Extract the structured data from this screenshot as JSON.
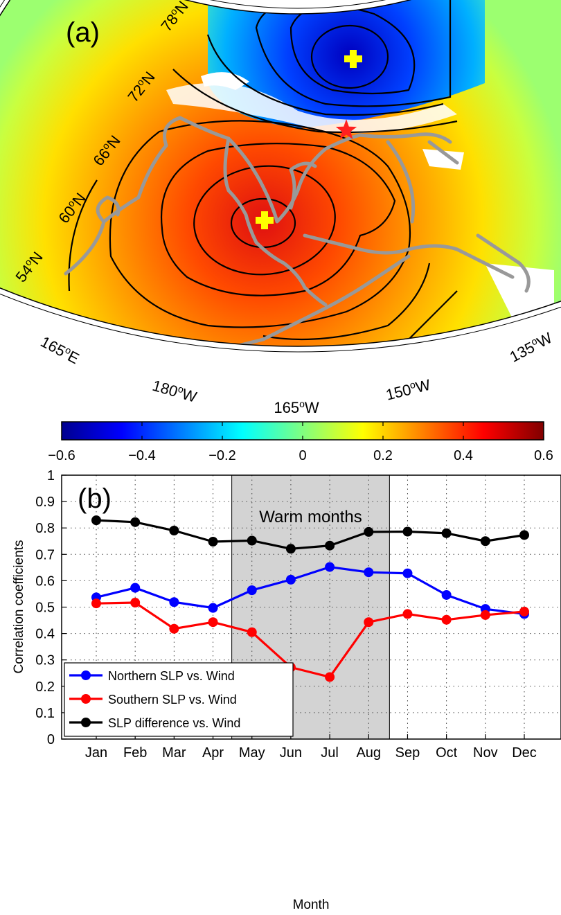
{
  "panel_a": {
    "label": "(a)",
    "lat_labels": [
      "78oN",
      "72oN",
      "66oN",
      "60oN",
      "54oN"
    ],
    "lon_labels": [
      "165oE",
      "180oW",
      "165oW",
      "150oW",
      "135oW"
    ],
    "colorbar": {
      "ticks": [
        "−0.6",
        "−0.4",
        "−0.2",
        "0",
        "0.2",
        "0.4",
        "0.6"
      ],
      "min": -0.6,
      "max": 0.6,
      "colormap": "jet"
    },
    "markers": {
      "north_plus_color": "#ffff00",
      "south_plus_color": "#ffff00",
      "star_color": "#ff2020"
    },
    "coast_color": "#999999",
    "contour_color": "#000000"
  },
  "chart_data": {
    "type": "line",
    "panel_label": "(b)",
    "categories": [
      "Jan",
      "Feb",
      "Mar",
      "Apr",
      "May",
      "Jun",
      "Jul",
      "Aug",
      "Sep",
      "Oct",
      "Nov",
      "Dec"
    ],
    "xlabel": "Month",
    "ylabel": "Correlation coefficients",
    "ylim": [
      0,
      1
    ],
    "yticks": [
      "0",
      "0.1",
      "0.2",
      "0.3",
      "0.4",
      "0.5",
      "0.6",
      "0.7",
      "0.8",
      "0.9",
      "1"
    ],
    "grid": "dotted",
    "shaded_region": {
      "from": "May",
      "to": "Aug",
      "label": "Warm months",
      "color": "#d3d3d3"
    },
    "legend_position": "bottom-left",
    "series": [
      {
        "name": "Northern SLP vs. Wind",
        "color": "#0000ff",
        "values": [
          0.537,
          0.573,
          0.519,
          0.497,
          0.564,
          0.604,
          0.652,
          0.632,
          0.628,
          0.546,
          0.493,
          0.474
        ]
      },
      {
        "name": "Southern SLP vs. Wind",
        "color": "#ff0000",
        "values": [
          0.514,
          0.517,
          0.418,
          0.443,
          0.405,
          0.272,
          0.235,
          0.443,
          0.474,
          0.452,
          0.47,
          0.483
        ]
      },
      {
        "name": "SLP difference vs. Wind",
        "color": "#000000",
        "values": [
          0.829,
          0.822,
          0.79,
          0.748,
          0.752,
          0.721,
          0.733,
          0.785,
          0.786,
          0.78,
          0.75,
          0.773
        ]
      }
    ]
  }
}
